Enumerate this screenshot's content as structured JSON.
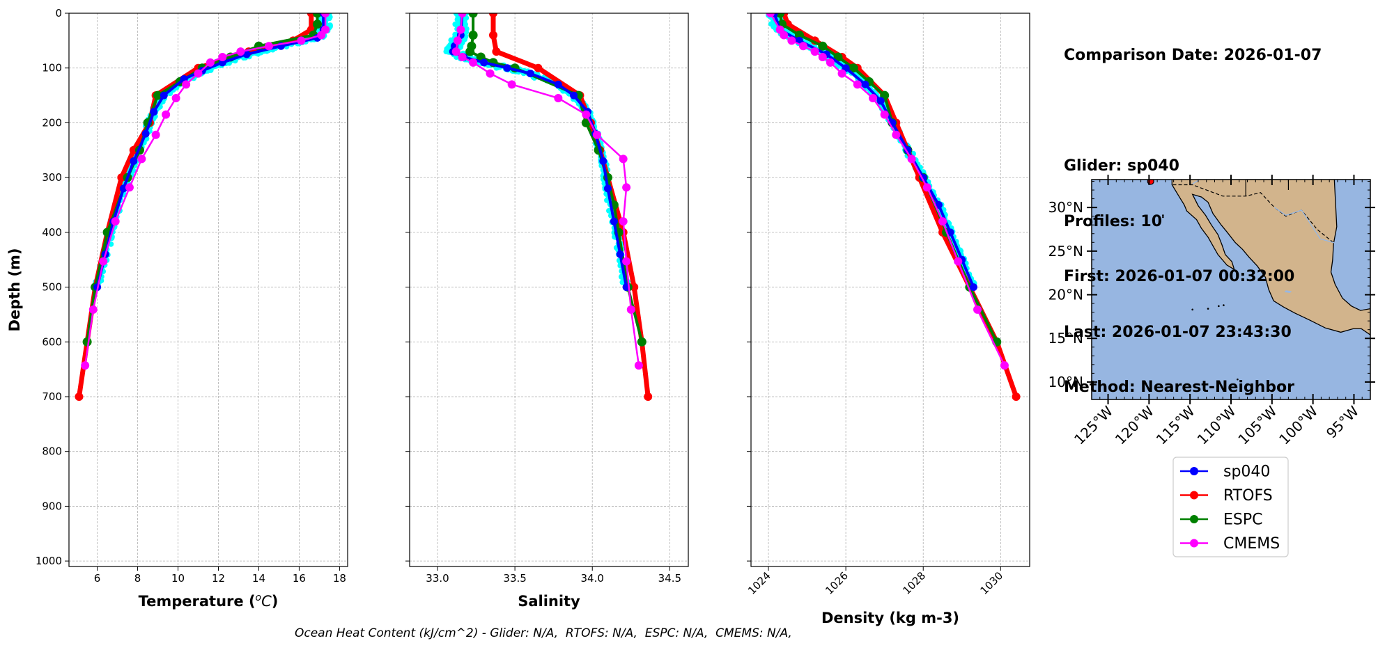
{
  "info": {
    "comparison_date": "Comparison Date: 2026-01-07",
    "glider": "Glider: sp040",
    "profiles": "Profiles: 10",
    "first": "First: 2026-01-07 00:32:00",
    "last": "Last: 2026-01-07 23:43:30",
    "method": "Method: Nearest-Neighbor"
  },
  "footer": "Ocean Heat Content (kJ/cm^2) - Glider: N/A,  RTOFS: N/A,  ESPC: N/A,  CMEMS: N/A,",
  "colors": {
    "sp040": "#0000ff",
    "RTOFS": "#ff0000",
    "ESPC": "#008000",
    "CMEMS": "#ff00ff",
    "glider_raw": "#00ffff",
    "ocean": "#97b6e1",
    "land": "#d2b48c"
  },
  "chart_data": [
    {
      "type": "line",
      "xlabel": "Temperature ($^oC$)",
      "xlabel_display": {
        "main": "Temperature (",
        "sup": "o",
        "unit": "C",
        "close": ")"
      },
      "ylabel": "Depth (m)",
      "xlim": [
        4.6,
        18.4
      ],
      "ylim": [
        1010,
        0
      ],
      "xticks": [
        6,
        8,
        10,
        12,
        14,
        16,
        18
      ],
      "yticks": [
        0,
        100,
        200,
        300,
        400,
        500,
        600,
        700,
        800,
        900,
        1000
      ],
      "grid": true,
      "series": [
        {
          "name": "RTOFS",
          "depths": [
            0,
            30,
            50,
            70,
            100,
            150,
            200,
            250,
            300,
            400,
            500,
            600,
            700
          ],
          "values": [
            16.6,
            16.6,
            15.7,
            13.5,
            11.0,
            8.9,
            8.6,
            7.8,
            7.2,
            6.5,
            5.9,
            5.5,
            5.1
          ]
        },
        {
          "name": "ESPC",
          "depths": [
            0,
            20,
            40,
            60,
            80,
            100,
            125,
            150,
            200,
            250,
            300,
            400,
            500,
            600
          ],
          "values": [
            16.9,
            16.9,
            16.7,
            14.0,
            12.6,
            11.2,
            10.1,
            9.0,
            8.5,
            8.1,
            7.5,
            6.5,
            5.9,
            5.5
          ]
        },
        {
          "name": "sp040",
          "depths": [
            0,
            30,
            45,
            60,
            75,
            90,
            105,
            120,
            150,
            180,
            220,
            270,
            320,
            380,
            440,
            500
          ],
          "values": [
            17.2,
            17.2,
            16.9,
            15.1,
            13.4,
            12.2,
            11.2,
            10.3,
            9.3,
            8.8,
            8.4,
            7.8,
            7.3,
            6.8,
            6.4,
            6.0
          ]
        },
        {
          "name": "CMEMS",
          "depths": [
            0,
            30,
            40,
            50,
            60,
            70,
            80,
            90,
            110,
            130,
            155,
            185,
            222,
            266,
            318,
            380,
            453,
            541,
            643
          ],
          "values": [
            17.3,
            17.3,
            17.1,
            16.1,
            14.5,
            13.1,
            12.2,
            11.6,
            11.0,
            10.4,
            9.9,
            9.4,
            8.9,
            8.2,
            7.6,
            6.9,
            6.3,
            5.8,
            5.4
          ]
        }
      ]
    },
    {
      "type": "line",
      "xlabel": "Salinity",
      "ylabel": "",
      "xlim": [
        32.82,
        34.62
      ],
      "ylim": [
        1010,
        0
      ],
      "xticks": [
        33.0,
        33.5,
        34.0,
        34.5
      ],
      "yticks": [
        0,
        100,
        200,
        300,
        400,
        500,
        600,
        700,
        800,
        900,
        1000
      ],
      "grid": true,
      "series": [
        {
          "name": "RTOFS",
          "depths": [
            0,
            40,
            70,
            100,
            150,
            200,
            250,
            300,
            400,
            500,
            600,
            700
          ],
          "values": [
            33.36,
            33.36,
            33.38,
            33.65,
            33.92,
            33.99,
            34.05,
            34.1,
            34.2,
            34.27,
            34.32,
            34.36
          ]
        },
        {
          "name": "ESPC",
          "depths": [
            0,
            40,
            60,
            70,
            80,
            90,
            100,
            150,
            200,
            250,
            300,
            350,
            400,
            500,
            600
          ],
          "values": [
            33.23,
            33.23,
            33.22,
            33.21,
            33.28,
            33.36,
            33.5,
            33.91,
            33.96,
            34.04,
            34.1,
            34.14,
            34.17,
            34.23,
            34.32
          ]
        },
        {
          "name": "sp040",
          "depths": [
            0,
            40,
            60,
            70,
            80,
            90,
            100,
            110,
            130,
            150,
            180,
            220,
            270,
            320,
            380,
            440,
            500
          ],
          "values": [
            33.16,
            33.15,
            33.11,
            33.1,
            33.17,
            33.3,
            33.45,
            33.6,
            33.78,
            33.88,
            33.97,
            34.02,
            34.07,
            34.1,
            34.14,
            34.18,
            34.22
          ]
        },
        {
          "name": "CMEMS",
          "depths": [
            0,
            30,
            50,
            70,
            80,
            90,
            110,
            130,
            155,
            185,
            222,
            266,
            318,
            380,
            453,
            541,
            643
          ],
          "values": [
            33.16,
            33.15,
            33.13,
            33.12,
            33.16,
            33.23,
            33.34,
            33.48,
            33.78,
            33.96,
            34.03,
            34.2,
            34.22,
            34.2,
            34.22,
            34.25,
            34.3
          ]
        }
      ]
    },
    {
      "type": "line",
      "xlabel": "Density (kg m-3)",
      "ylabel": "",
      "xlim": [
        1023.55,
        1030.75
      ],
      "ylim": [
        1010,
        0
      ],
      "xticks": [
        1024,
        1026,
        1028,
        1030
      ],
      "yticks": [
        0,
        100,
        200,
        300,
        400,
        500,
        600,
        700,
        800,
        900,
        1000
      ],
      "grid": true,
      "series": [
        {
          "name": "RTOFS",
          "depths": [
            0,
            20,
            50,
            80,
            100,
            150,
            200,
            300,
            400,
            500,
            600,
            700
          ],
          "values": [
            1024.4,
            1024.5,
            1025.2,
            1025.9,
            1026.3,
            1027.0,
            1027.3,
            1027.9,
            1028.5,
            1029.2,
            1029.9,
            1030.4
          ]
        },
        {
          "name": "ESPC",
          "depths": [
            0,
            20,
            40,
            60,
            80,
            100,
            125,
            150,
            200,
            250,
            300,
            400,
            500,
            600
          ],
          "values": [
            1024.3,
            1024.35,
            1024.8,
            1025.4,
            1025.8,
            1026.2,
            1026.6,
            1027.0,
            1027.2,
            1027.6,
            1028.0,
            1028.6,
            1029.2,
            1029.9
          ]
        },
        {
          "name": "sp040",
          "depths": [
            0,
            30,
            50,
            75,
            100,
            130,
            160,
            200,
            250,
            300,
            350,
            400,
            450,
            500
          ],
          "values": [
            1024.15,
            1024.3,
            1024.8,
            1025.5,
            1026.0,
            1026.5,
            1026.9,
            1027.2,
            1027.6,
            1028.0,
            1028.4,
            1028.7,
            1029.0,
            1029.3
          ]
        },
        {
          "name": "CMEMS",
          "depths": [
            0,
            30,
            40,
            50,
            60,
            70,
            80,
            90,
            110,
            130,
            155,
            185,
            222,
            266,
            318,
            380,
            453,
            541,
            643
          ],
          "values": [
            1024.05,
            1024.3,
            1024.4,
            1024.6,
            1024.9,
            1025.2,
            1025.4,
            1025.6,
            1025.9,
            1026.3,
            1026.7,
            1027.0,
            1027.3,
            1027.7,
            1028.1,
            1028.5,
            1028.9,
            1029.4,
            1030.1
          ]
        }
      ]
    },
    {
      "type": "map",
      "lat_ticks": [
        "30°N",
        "25°N",
        "20°N",
        "15°N",
        "10°N"
      ],
      "lon_ticks": [
        "125°W",
        "120°W",
        "115°W",
        "110°W",
        "105°W",
        "100°W",
        "95°W"
      ],
      "lon_range": [
        -127,
        -93
      ],
      "lat_range": [
        8,
        33.2
      ],
      "lat_values": [
        30,
        25,
        20,
        15,
        10
      ],
      "lon_values": [
        -125,
        -120,
        -115,
        -110,
        -105,
        -100,
        -95
      ],
      "glider_position": {
        "lon": -119.8,
        "lat": 33.0
      }
    }
  ],
  "legend": {
    "placement": "below-map",
    "entries": [
      "sp040",
      "RTOFS",
      "ESPC",
      "CMEMS"
    ]
  }
}
